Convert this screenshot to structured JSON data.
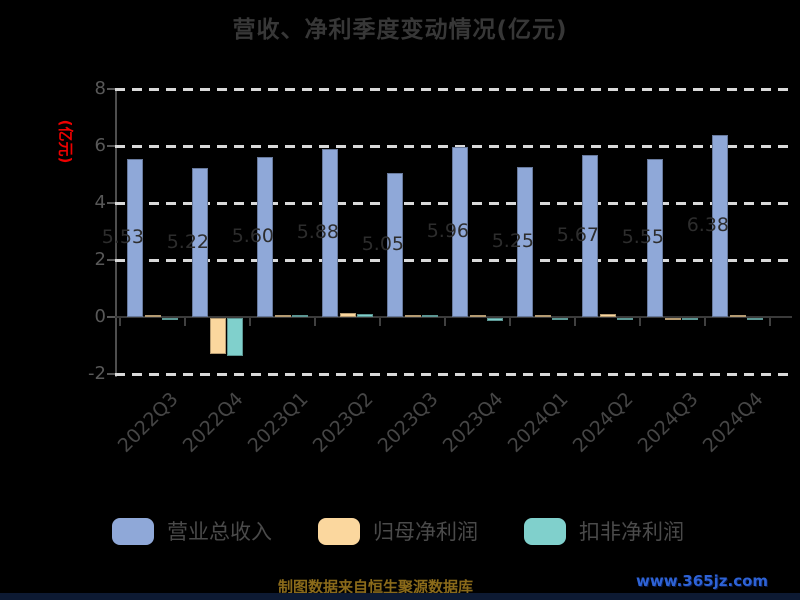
{
  "title": "营收、净利季度变动情况(亿元)",
  "y_axis_unit": "(亿元)",
  "chart_data": {
    "type": "bar",
    "title": "营收、净利季度变动情况(亿元)",
    "ylabel": "(亿元)",
    "xlabel": "",
    "categories": [
      "2022Q3",
      "2022Q4",
      "2023Q1",
      "2023Q2",
      "2023Q3",
      "2023Q4",
      "2024Q1",
      "2024Q2",
      "2024Q3",
      "2024Q4"
    ],
    "series": [
      {
        "name": "营业总收入",
        "color": "#8fa8d8",
        "values": [
          5.53,
          5.22,
          5.6,
          5.88,
          5.05,
          5.96,
          5.25,
          5.67,
          5.55,
          6.38
        ]
      },
      {
        "name": "归母净利润",
        "color": "#fbd79e",
        "values": [
          0.02,
          -1.25,
          0.04,
          0.15,
          0.08,
          0.02,
          0.08,
          0.1,
          -0.05,
          0.08
        ]
      },
      {
        "name": "扣非净利润",
        "color": "#80d0cc",
        "values": [
          -0.05,
          -1.32,
          0.03,
          0.1,
          0.04,
          -0.1,
          -0.03,
          -0.05,
          -0.05,
          -0.04
        ]
      }
    ],
    "bar_value_labels": [
      "5.53",
      "5.22",
      "5.60",
      "5.88",
      "5.05",
      "5.96",
      "5.25",
      "5.67",
      "5.55",
      "6.38"
    ],
    "ylim": [
      -2,
      8
    ],
    "yticks": [
      8,
      6,
      4,
      2,
      0,
      -2
    ],
    "grid": "horizontal-dashed",
    "legend_position": "bottom"
  },
  "colors": {
    "background": "#000000",
    "title_text": "#373737",
    "axis_unit_label": "#ee0000",
    "revenue_bar": "#8fa8d8",
    "net_profit_bar": "#fbd79e",
    "deducted_net_profit_bar": "#80d0cc",
    "source_note_text": "#8a6a1a",
    "watermark_text": "#2e63d6"
  },
  "footer": {
    "source_note": "制图数据来自恒生聚源数据库",
    "watermark": "www.365jz.com"
  }
}
